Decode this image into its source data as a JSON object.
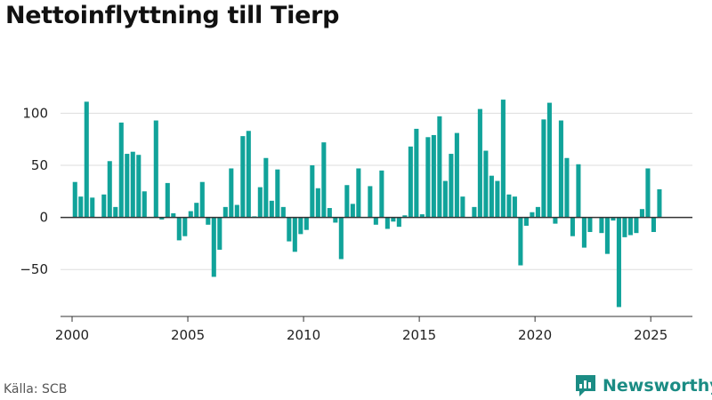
{
  "title": "Nettoinflyttning till Tierp",
  "source": "Källa: SCB",
  "brand": {
    "name": "Newsworthy",
    "icon": "newsworthy-logo-icon",
    "color": "#1b8c84"
  },
  "chart_data": {
    "type": "bar",
    "title": "Nettoinflyttning till Tierp",
    "xlabel": "",
    "ylabel": "",
    "bar_color": "#11a39a",
    "grid": true,
    "ylim": [
      -95,
      125
    ],
    "xlim": [
      1999.5,
      2026.8
    ],
    "yticks": [
      -50,
      0,
      50,
      100
    ],
    "ytick_labels": [
      "−50",
      "0",
      "50",
      "100"
    ],
    "xticks": [
      2000,
      2005,
      2010,
      2015,
      2020,
      2025
    ],
    "xtick_labels": [
      "2000",
      "2005",
      "2010",
      "2015",
      "2020",
      "2025"
    ],
    "categories": [
      "2000Q1",
      "2000Q2",
      "2000Q3",
      "2000Q4",
      "2001Q1",
      "2001Q2",
      "2001Q3",
      "2001Q4",
      "2002Q1",
      "2002Q2",
      "2002Q3",
      "2002Q4",
      "2003Q1",
      "2003Q2",
      "2003Q3",
      "2003Q4",
      "2004Q1",
      "2004Q2",
      "2004Q3",
      "2004Q4",
      "2005Q1",
      "2005Q2",
      "2005Q3",
      "2005Q4",
      "2006Q1",
      "2006Q2",
      "2006Q3",
      "2006Q4",
      "2007Q1",
      "2007Q2",
      "2007Q3",
      "2007Q4",
      "2008Q1",
      "2008Q2",
      "2008Q3",
      "2008Q4",
      "2009Q1",
      "2009Q2",
      "2009Q3",
      "2009Q4",
      "2010Q1",
      "2010Q2",
      "2010Q3",
      "2010Q4",
      "2011Q1",
      "2011Q2",
      "2011Q3",
      "2011Q4",
      "2012Q1",
      "2012Q2",
      "2012Q3",
      "2012Q4",
      "2013Q1",
      "2013Q2",
      "2013Q3",
      "2013Q4",
      "2014Q1",
      "2014Q2",
      "2014Q3",
      "2014Q4",
      "2015Q1",
      "2015Q2",
      "2015Q3",
      "2015Q4",
      "2016Q1",
      "2016Q2",
      "2016Q3",
      "2016Q4",
      "2017Q1",
      "2017Q2",
      "2017Q3",
      "2017Q4",
      "2018Q1",
      "2018Q2",
      "2018Q3",
      "2018Q4",
      "2019Q1",
      "2019Q2",
      "2019Q3",
      "2019Q4",
      "2020Q1",
      "2020Q2",
      "2020Q3",
      "2020Q4",
      "2021Q1",
      "2021Q2",
      "2021Q3",
      "2021Q4",
      "2022Q1",
      "2022Q2",
      "2022Q3",
      "2022Q4",
      "2023Q1",
      "2023Q2",
      "2023Q3",
      "2023Q4",
      "2024Q1",
      "2024Q2",
      "2024Q3",
      "2024Q4",
      "2025Q1",
      "2025Q2",
      "2025Q3"
    ],
    "values": [
      34,
      20,
      111,
      19,
      0,
      22,
      54,
      10,
      91,
      61,
      63,
      60,
      25,
      0,
      93,
      -2,
      33,
      4,
      -22,
      -18,
      6,
      14,
      34,
      -7,
      -57,
      -31,
      10,
      47,
      12,
      78,
      83,
      1,
      29,
      57,
      16,
      46,
      10,
      -23,
      -33,
      -16,
      -12,
      50,
      28,
      72,
      9,
      -5,
      -40,
      31,
      13,
      47,
      0,
      30,
      -7,
      45,
      -11,
      -4,
      -9,
      2,
      68,
      85,
      3,
      77,
      79,
      97,
      35,
      61,
      81,
      20,
      0,
      10,
      104,
      64,
      40,
      35,
      113,
      22,
      20,
      -46,
      -8,
      5,
      10,
      94,
      110,
      -6,
      93,
      57,
      -18,
      51,
      -29,
      -14,
      0,
      -15,
      -35,
      -3,
      -86,
      -19,
      -17,
      -15,
      8,
      47,
      -14,
      27,
      0
    ]
  }
}
